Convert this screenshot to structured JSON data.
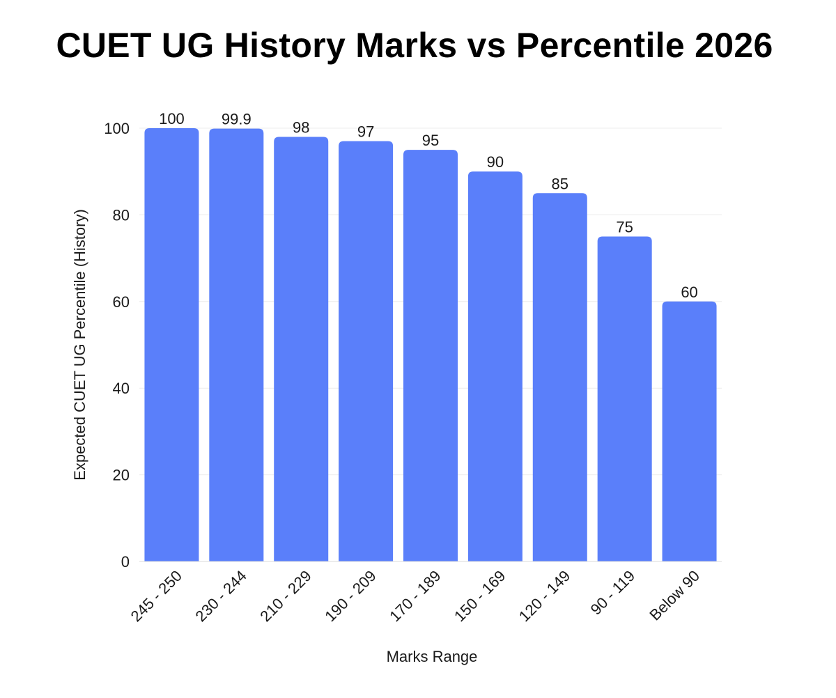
{
  "chart_data": {
    "type": "bar",
    "title": "CUET UG History Marks vs Percentile 2026",
    "xlabel": "Marks Range",
    "ylabel": "Expected CUET UG Percentile (History)",
    "categories": [
      "245 - 250",
      "230 - 244",
      "210 - 229",
      "190 - 209",
      "170 - 189",
      "150 - 169",
      "120 - 149",
      "90 - 119",
      "Below 90"
    ],
    "values": [
      100,
      99.9,
      98,
      97,
      95,
      90,
      85,
      75,
      60
    ],
    "value_labels": [
      "100",
      "99.9",
      "98",
      "97",
      "95",
      "90",
      "85",
      "75",
      "60"
    ],
    "ylim": [
      0,
      100
    ],
    "yticks": [
      "0",
      "20",
      "40",
      "60",
      "80",
      "100"
    ],
    "grid": true,
    "legend": "none",
    "bar_color": "#5a7ffa"
  }
}
